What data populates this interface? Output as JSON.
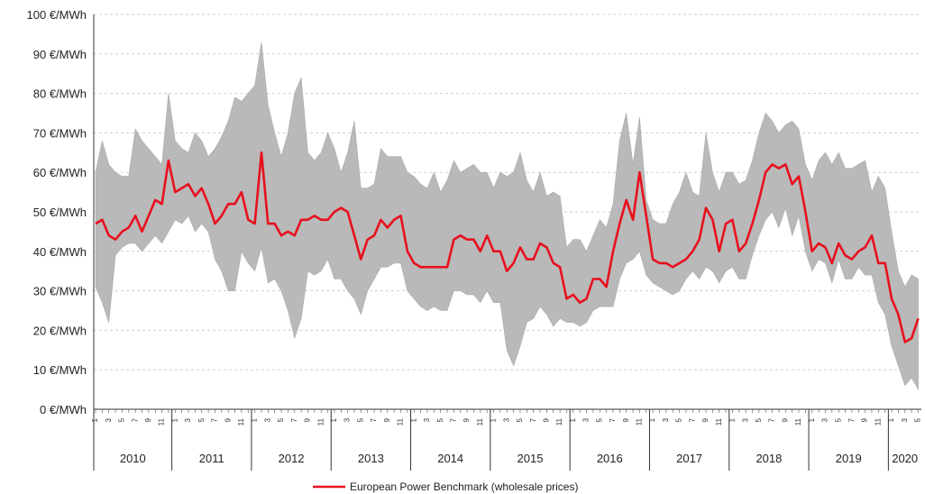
{
  "chart_data": {
    "type": "area",
    "title": "",
    "xlabel": "",
    "ylabel": "",
    "ylim": [
      0,
      100
    ],
    "y_ticks": [
      "0 €/MWh",
      "10 €/MWh",
      "20 €/MWh",
      "30 €/MWh",
      "40 €/MWh",
      "50 €/MWh",
      "60 €/MWh",
      "70 €/MWh",
      "80 €/MWh",
      "90 €/MWh",
      "100 €/MWh"
    ],
    "grid": true,
    "legend_position": "bottom-center",
    "start": "2010-01",
    "years": [
      "2010",
      "2011",
      "2012",
      "2013",
      "2014",
      "2015",
      "2016",
      "2017",
      "2018",
      "2019",
      "2020"
    ],
    "month_tick_labels": [
      "1",
      "3",
      "5",
      "7",
      "9",
      "11"
    ],
    "colors": {
      "benchmark": "#e8101e",
      "range": "#b9b9b9"
    },
    "series": [
      {
        "name": "European Power Benchmark (wholesale prices)",
        "values": [
          47,
          48,
          44,
          43,
          45,
          46,
          49,
          45,
          49,
          53,
          52,
          63,
          55,
          56,
          57,
          54,
          56,
          52,
          47,
          49,
          52,
          52,
          55,
          48,
          47,
          65,
          47,
          47,
          44,
          45,
          44,
          48,
          48,
          49,
          48,
          48,
          50,
          51,
          50,
          44,
          38,
          43,
          44,
          48,
          46,
          48,
          49,
          40,
          37,
          36,
          36,
          36,
          36,
          36,
          43,
          44,
          43,
          43,
          40,
          44,
          40,
          40,
          35,
          37,
          41,
          38,
          38,
          42,
          41,
          37,
          36,
          28,
          29,
          27,
          28,
          33,
          33,
          31,
          40,
          47,
          53,
          48,
          60,
          49,
          38,
          37,
          37,
          36,
          37,
          38,
          40,
          43,
          51,
          48,
          40,
          47,
          48,
          40,
          42,
          47,
          53,
          60,
          62,
          61,
          62,
          57,
          59,
          50,
          40,
          42,
          41,
          37,
          42,
          39,
          38,
          40,
          41,
          44,
          37,
          37,
          28,
          24,
          17,
          18,
          23
        ]
      },
      {
        "name": "",
        "role": "range-high",
        "values": [
          60,
          68,
          62,
          60,
          59,
          59,
          71,
          68,
          66,
          64,
          62,
          80,
          68,
          66,
          65,
          70,
          68,
          64,
          66,
          69,
          73,
          79,
          78,
          80,
          82,
          93,
          77,
          70,
          64,
          70,
          80,
          84,
          65,
          63,
          65,
          70,
          66,
          60,
          65,
          73,
          56,
          56,
          57,
          66,
          64,
          64,
          64,
          60,
          59,
          57,
          56,
          60,
          55,
          58,
          63,
          60,
          61,
          62,
          60,
          60,
          56,
          60,
          59,
          60,
          65,
          58,
          55,
          60,
          54,
          55,
          54,
          41,
          43,
          43,
          40,
          44,
          48,
          46,
          52,
          68,
          75,
          62,
          74,
          53,
          48,
          47,
          47,
          52,
          55,
          60,
          55,
          54,
          70,
          60,
          55,
          60,
          60,
          57,
          58,
          63,
          70,
          75,
          73,
          70,
          72,
          73,
          71,
          62,
          58,
          63,
          65,
          62,
          65,
          61,
          61,
          62,
          63,
          55,
          59,
          56,
          45,
          35,
          31,
          34,
          33
        ]
      },
      {
        "name": "",
        "role": "range-low",
        "values": [
          31,
          27,
          22,
          39,
          41,
          42,
          42,
          40,
          42,
          44,
          42,
          45,
          48,
          47,
          49,
          45,
          47,
          45,
          38,
          35,
          30,
          30,
          40,
          37,
          35,
          41,
          32,
          33,
          30,
          25,
          18,
          23,
          35,
          34,
          35,
          38,
          33,
          33,
          30,
          28,
          24,
          30,
          33,
          36,
          36,
          37,
          37,
          30,
          28,
          26,
          25,
          26,
          25,
          25,
          30,
          30,
          29,
          29,
          27,
          30,
          27,
          27,
          15,
          11,
          16,
          22,
          23,
          26,
          24,
          21,
          23,
          22,
          22,
          21,
          22,
          25,
          26,
          26,
          26,
          33,
          37,
          38,
          40,
          34,
          32,
          31,
          30,
          29,
          30,
          33,
          35,
          33,
          36,
          35,
          32,
          35,
          36,
          33,
          33,
          39,
          44,
          48,
          50,
          46,
          51,
          44,
          49,
          40,
          35,
          38,
          37,
          32,
          38,
          33,
          33,
          36,
          34,
          34,
          27,
          24,
          16,
          11,
          6,
          8,
          5
        ]
      }
    ]
  }
}
